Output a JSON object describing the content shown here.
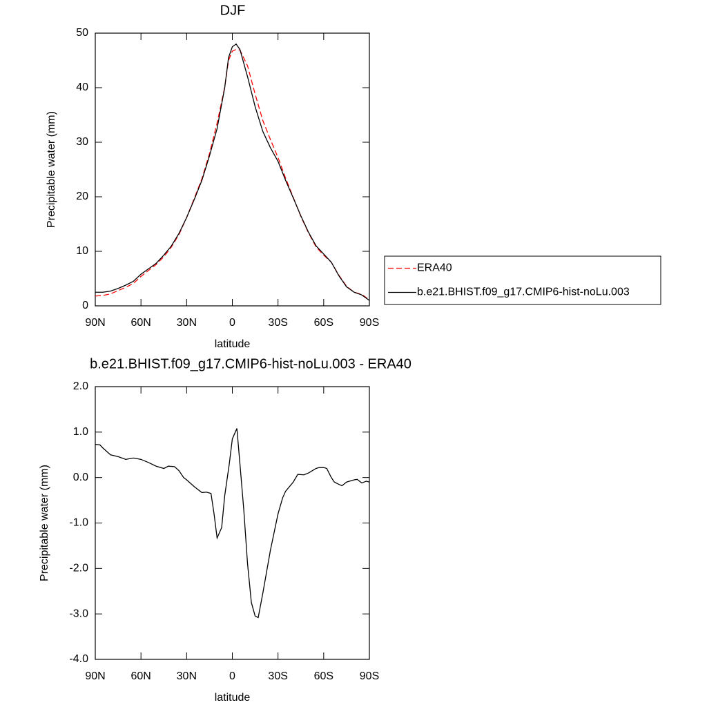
{
  "chart_data": [
    {
      "type": "line",
      "title": "DJF",
      "xlabel": "latitude",
      "ylabel": "Precipitable water (mm)",
      "x": [
        90,
        85,
        80,
        75,
        70,
        65,
        60,
        55,
        50,
        45,
        40,
        35,
        30,
        25,
        20,
        15,
        10,
        5,
        2.5,
        0,
        -2.5,
        -5,
        -10,
        -15,
        -20,
        -25,
        -30,
        -35,
        -40,
        -45,
        -50,
        -55,
        -60,
        -65,
        -70,
        -75,
        -80,
        -85,
        -90
      ],
      "series": [
        {
          "name": "ERA40",
          "color": "#ff0000",
          "dash": "dashed",
          "values": [
            1.8,
            1.9,
            2.2,
            2.8,
            3.4,
            4.1,
            5.4,
            6.5,
            7.6,
            9.0,
            10.8,
            13.1,
            16.2,
            19.7,
            23.3,
            27.9,
            33.5,
            40.1,
            45,
            46.7,
            47,
            46.9,
            44,
            38.8,
            34,
            30.5,
            27.2,
            23.4,
            19.9,
            16.4,
            13.4,
            10.8,
            9.3,
            8,
            5.6,
            3.6,
            2.5,
            2.1,
            1.1
          ]
        },
        {
          "name": "b.e21.BHIST.f09_g17.CMIP6-hist-noLu.003",
          "color": "#000000",
          "dash": "solid",
          "values": [
            2.5,
            2.5,
            2.7,
            3.2,
            3.8,
            4.5,
            5.8,
            6.8,
            7.8,
            9.3,
            11,
            13.3,
            16.2,
            19.5,
            23,
            27.5,
            32.5,
            40,
            45.5,
            47.5,
            48,
            47,
            42,
            36.5,
            32,
            29,
            26.5,
            23,
            19.8,
            16.5,
            13.5,
            11,
            9.5,
            8,
            5.5,
            3.5,
            2.5,
            2,
            1
          ]
        }
      ],
      "xlim": [
        90,
        -90
      ],
      "xticks": [
        {
          "value": 90,
          "label": "90N"
        },
        {
          "value": 60,
          "label": "60N"
        },
        {
          "value": 30,
          "label": "30N"
        },
        0,
        {
          "value": -30,
          "label": "30S"
        },
        {
          "value": -60,
          "label": "60S"
        },
        {
          "value": -90,
          "label": "90S"
        }
      ],
      "ylim": [
        0,
        50
      ],
      "yticks": [
        0,
        10,
        20,
        30,
        40,
        50
      ],
      "legend": "right"
    },
    {
      "type": "line",
      "title": "b.e21.BHIST.f09_g17.CMIP6-hist-noLu.003 - ERA40",
      "xlabel": "latitude",
      "ylabel": "Precipitable water (mm)",
      "x": [
        90,
        87,
        85,
        80,
        75,
        70,
        65,
        60,
        55,
        50,
        45,
        42,
        38,
        35,
        32,
        30,
        25,
        20,
        17,
        14,
        12,
        10,
        7,
        5,
        2,
        0,
        -3,
        -5,
        -7.5,
        -10,
        -12.5,
        -15,
        -17,
        -20,
        -25,
        -30,
        -33,
        -35,
        -40,
        -43,
        -47,
        -50,
        -55,
        -57,
        -60,
        -62,
        -65,
        -67,
        -70,
        -72,
        -75,
        -77,
        -80,
        -82,
        -85,
        -88,
        -90
      ],
      "values": [
        0.73,
        0.72,
        0.65,
        0.5,
        0.46,
        0.4,
        0.43,
        0.4,
        0.33,
        0.25,
        0.2,
        0.25,
        0.24,
        0.15,
        0.0,
        -0.05,
        -0.2,
        -0.33,
        -0.32,
        -0.35,
        -0.8,
        -1.33,
        -1.1,
        -0.4,
        0.3,
        0.85,
        1.08,
        0.3,
        -0.7,
        -1.9,
        -2.75,
        -3.05,
        -3.08,
        -2.55,
        -1.6,
        -0.8,
        -0.45,
        -0.3,
        -0.1,
        0.07,
        0.06,
        0.1,
        0.2,
        0.22,
        0.22,
        0.2,
        0.0,
        -0.1,
        -0.15,
        -0.18,
        -0.1,
        -0.08,
        -0.05,
        -0.04,
        -0.12,
        -0.08,
        -0.1
      ],
      "color": "#000000",
      "xlim": [
        90,
        -90
      ],
      "xticks": [
        {
          "value": 90,
          "label": "90N"
        },
        {
          "value": 60,
          "label": "60N"
        },
        {
          "value": 30,
          "label": "30N"
        },
        0,
        {
          "value": -30,
          "label": "30S"
        },
        {
          "value": -60,
          "label": "60S"
        },
        {
          "value": -90,
          "label": "90S"
        }
      ],
      "ylim": [
        -4,
        2
      ],
      "yticks": [
        {
          "value": -4,
          "label": "-4.0"
        },
        {
          "value": -3,
          "label": "-3.0"
        },
        {
          "value": -2,
          "label": "-2.0"
        },
        {
          "value": -1,
          "label": "-1.0"
        },
        {
          "value": 0,
          "label": "0.0"
        },
        {
          "value": 1,
          "label": "1.0"
        },
        {
          "value": 2,
          "label": "2.0"
        }
      ]
    }
  ]
}
